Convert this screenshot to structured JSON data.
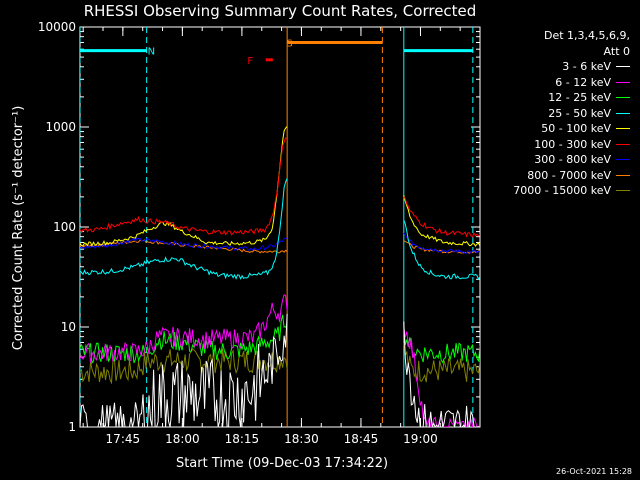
{
  "title": "RHESSI Observing Summary Count Rates, Corrected",
  "stamp": "26-Oct-2021 15:28",
  "legend_header": [
    "Det 1,3,4,5,6,9,",
    "Att 0"
  ],
  "chart_data": {
    "type": "line",
    "title": "RHESSI Observing Summary Count Rates, Corrected",
    "xlabel": "Start Time (09-Dec-03 17:34:22)",
    "ylabel": "Corrected Count Rate (s⁻¹ detector⁻¹)",
    "xlim": [
      17.57,
      19.25
    ],
    "ylim": [
      1,
      10000
    ],
    "yscale": "log",
    "xticks": [
      {
        "x": 17.75,
        "label": "17:45"
      },
      {
        "x": 18.0,
        "label": "18:00"
      },
      {
        "x": 18.25,
        "label": "18:15"
      },
      {
        "x": 18.5,
        "label": "18:30"
      },
      {
        "x": 18.75,
        "label": "18:45"
      },
      {
        "x": 19.0,
        "label": "19:00"
      }
    ],
    "yticks": [
      {
        "y": 1,
        "label": "1"
      },
      {
        "y": 10,
        "label": "10"
      },
      {
        "y": 100,
        "label": "100"
      },
      {
        "y": 1000,
        "label": "1000"
      },
      {
        "y": 10000,
        "label": "10000"
      }
    ],
    "gaps": [
      [
        18.44,
        18.93
      ]
    ],
    "series": [
      {
        "name": "3 - 6 keV",
        "color": "#ffffff",
        "x": [
          17.57,
          17.82,
          17.85,
          17.9,
          18.0,
          18.1,
          18.2,
          18.3,
          18.36,
          18.4,
          18.43,
          18.93,
          18.96,
          19.0,
          19.1,
          19.2,
          19.25
        ],
        "y": [
          1,
          1,
          1.3,
          2.0,
          2.1,
          2.0,
          2.0,
          2.4,
          3.6,
          5.5,
          9,
          9,
          3,
          1,
          1,
          1,
          1
        ],
        "noise": 0.5
      },
      {
        "name": "6 - 12 keV",
        "color": "#ff00ff",
        "x": [
          17.57,
          17.8,
          17.85,
          17.9,
          18.0,
          18.1,
          18.2,
          18.3,
          18.34,
          18.38,
          18.41,
          18.43,
          18.93,
          18.96,
          19.0,
          19.02,
          19.25
        ],
        "y": [
          5.5,
          5.6,
          6.0,
          8.0,
          8.0,
          7.5,
          7.7,
          7.8,
          10,
          15,
          14,
          18,
          10,
          7,
          2,
          1,
          1
        ],
        "noise": 0.2
      },
      {
        "name": "12 - 25 keV",
        "color": "#00ff00",
        "x": [
          17.57,
          17.85,
          17.9,
          18.0,
          18.1,
          18.2,
          18.3,
          18.4,
          18.43,
          18.93,
          18.96,
          19.0,
          19.25
        ],
        "y": [
          5.5,
          5.5,
          7.5,
          7.0,
          6.0,
          5.7,
          6.2,
          8,
          12,
          9,
          6,
          5.5,
          5.5
        ],
        "noise": 0.2
      },
      {
        "name": "25 - 50 keV",
        "color": "#00ffff",
        "x": [
          17.57,
          17.7,
          17.8,
          17.9,
          17.98,
          18.05,
          18.15,
          18.25,
          18.32,
          18.36,
          18.39,
          18.42,
          18.43,
          18.93,
          18.96,
          19.0,
          19.05,
          19.1,
          19.25
        ],
        "y": [
          35,
          36,
          40,
          47,
          48,
          40,
          33,
          32,
          33,
          35,
          45,
          150,
          300,
          120,
          60,
          40,
          34,
          32,
          32
        ],
        "noise": 0.05
      },
      {
        "name": "50 - 100 keV",
        "color": "#ffff00",
        "x": [
          17.57,
          17.7,
          17.8,
          17.88,
          17.92,
          17.95,
          18.0,
          18.05,
          18.1,
          18.2,
          18.3,
          18.35,
          18.38,
          18.4,
          18.42,
          18.43,
          18.93,
          18.96,
          19.0,
          19.1,
          19.25
        ],
        "y": [
          67,
          70,
          80,
          100,
          110,
          105,
          90,
          80,
          70,
          68,
          70,
          75,
          100,
          250,
          700,
          1000,
          200,
          120,
          85,
          70,
          67
        ],
        "noise": 0.04
      },
      {
        "name": "100 - 300 keV",
        "color": "#ff0000",
        "x": [
          17.57,
          17.65,
          17.75,
          17.82,
          17.85,
          17.92,
          17.96,
          18.0,
          18.1,
          18.2,
          18.3,
          18.35,
          18.38,
          18.4,
          18.42,
          18.43,
          18.93,
          18.96,
          19.0,
          19.05,
          19.1,
          19.25
        ],
        "y": [
          92,
          95,
          110,
          120,
          115,
          112,
          105,
          97,
          90,
          88,
          90,
          95,
          130,
          250,
          600,
          800,
          200,
          140,
          110,
          95,
          88,
          82
        ],
        "noise": 0.05
      },
      {
        "name": "300 - 800 keV",
        "color": "#0000ff",
        "x": [
          17.57,
          17.7,
          17.8,
          17.9,
          18.0,
          18.2,
          18.3,
          18.38,
          18.43,
          18.93,
          18.96,
          19.0,
          19.05,
          19.1,
          19.25
        ],
        "y": [
          62,
          66,
          75,
          72,
          67,
          62,
          60,
          64,
          75,
          85,
          70,
          63,
          60,
          58,
          56
        ],
        "noise": 0.04
      },
      {
        "name": "800 - 7000 keV",
        "color": "#ff8000",
        "x": [
          17.57,
          17.65,
          17.75,
          17.82,
          17.9,
          18.0,
          18.2,
          18.3,
          18.4,
          18.43,
          18.93,
          18.96,
          19.0,
          19.1,
          19.25
        ],
        "y": [
          64,
          66,
          70,
          73,
          70,
          66,
          60,
          57,
          57,
          58,
          75,
          65,
          60,
          57,
          56
        ],
        "noise": 0.03
      },
      {
        "name": "7000 - 15000 keV",
        "color": "#808000",
        "x": [
          17.57,
          17.8,
          17.85,
          17.9,
          18.2,
          18.4,
          18.43,
          18.93,
          18.96,
          19.25
        ],
        "y": [
          3.6,
          3.6,
          4.5,
          4.6,
          4.6,
          4.7,
          5,
          6,
          3.7,
          3.6
        ],
        "noise": 0.25
      }
    ],
    "annotations": [
      {
        "label": "N",
        "color": "#00ffff",
        "x": 17.87,
        "y": 5800
      },
      {
        "label": "S",
        "color": "#ff8000",
        "x": 18.45,
        "y": 7000
      },
      {
        "label": "F",
        "color": "#ff0000",
        "x": 18.285,
        "y": 4700
      }
    ],
    "flags": [
      {
        "name": "night",
        "color": "#00ffff",
        "segments": [
          [
            17.57,
            17.85
          ],
          [
            18.93,
            19.22
          ]
        ],
        "y": 5800,
        "bounds": [
          17.57,
          17.85,
          18.93,
          19.22
        ]
      },
      {
        "name": "saa",
        "color": "#ff8000",
        "segments": [
          [
            18.44,
            18.84
          ]
        ],
        "y": 7000,
        "bounds": [
          18.44,
          18.84
        ]
      },
      {
        "name": "flare",
        "color": "#ff0000",
        "segments": [
          [
            18.35,
            18.38
          ]
        ],
        "y": 4700,
        "bounds": []
      }
    ]
  }
}
